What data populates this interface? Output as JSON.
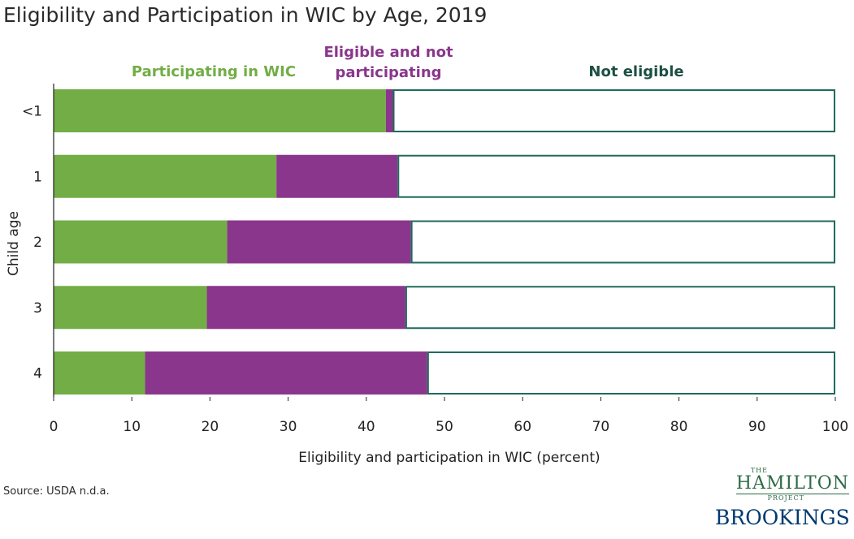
{
  "title": "Eligibility and Participation in WIC by Age, 2019",
  "source": "Source: USDA n.d.a.",
  "logo": {
    "the": "THE",
    "hamilton": "HAMILTON",
    "project": "PROJECT",
    "brookings": "BROOKINGS"
  },
  "colors": {
    "participating": "#72ad46",
    "eligible_not": "#8a368c",
    "not_eligible_border": "#1f6b5c",
    "not_eligible_label": "#1d4f43"
  },
  "chart_data": {
    "type": "bar",
    "orientation": "horizontal",
    "stacked": true,
    "categories": [
      "<1",
      "1",
      "2",
      "3",
      "4"
    ],
    "series": [
      {
        "name": "Participating in WIC",
        "values": [
          42.5,
          28.5,
          22.2,
          19.6,
          11.7
        ]
      },
      {
        "name": "Eligible and not participating",
        "values": [
          0.9,
          15.5,
          23.5,
          25.4,
          36.1
        ]
      },
      {
        "name": "Not eligible",
        "values": [
          56.6,
          56.0,
          54.3,
          55.0,
          52.2
        ]
      }
    ],
    "legend_labels": [
      [
        "Participating in WIC"
      ],
      [
        "Eligible and not",
        "participating"
      ],
      [
        "Not eligible"
      ]
    ],
    "xlabel": "Eligibility and participation in WIC (percent)",
    "ylabel": "Child age",
    "xlim": [
      0,
      100
    ],
    "xticks": [
      0,
      10,
      20,
      30,
      40,
      50,
      60,
      70,
      80,
      90,
      100
    ]
  }
}
